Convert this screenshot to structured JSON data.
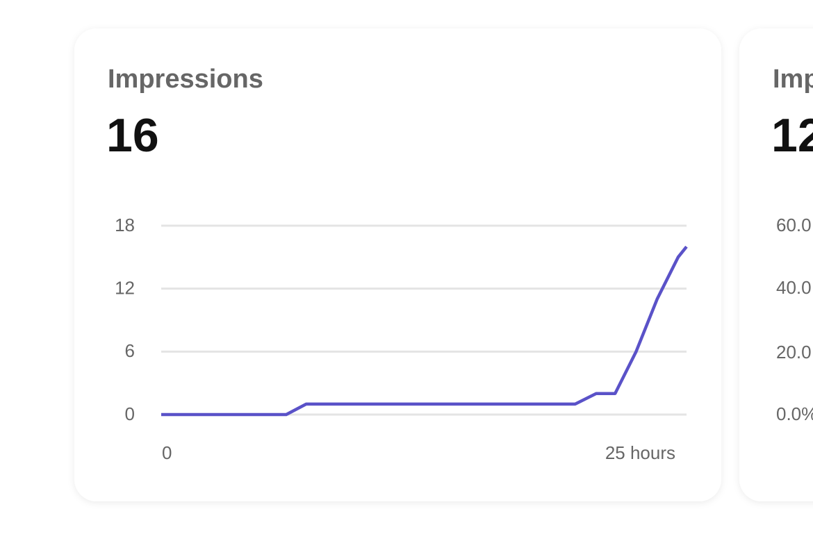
{
  "chart_data": {
    "type": "line",
    "title": "Impressions",
    "headline": "16",
    "x": [
      0,
      5.95,
      6.9,
      19.7,
      20.7,
      21.6,
      22.6,
      23.6,
      24.6,
      25
    ],
    "series": [
      {
        "color": "#5a52c8",
        "values": [
          0,
          0,
          1,
          1,
          2,
          2,
          6,
          11,
          15,
          16
        ]
      }
    ],
    "xlim": [
      0,
      25
    ],
    "xticks": [
      0,
      {
        "value": 25,
        "label": "25 hours"
      }
    ],
    "ylim": [
      0,
      18
    ],
    "yticks": [
      0,
      6,
      12,
      18
    ],
    "grid": true
  },
  "side_card": {
    "title": "Imp",
    "headline": "12",
    "tick_labels": [
      "60.0",
      "40.0",
      "20.0",
      "0.0%"
    ]
  }
}
